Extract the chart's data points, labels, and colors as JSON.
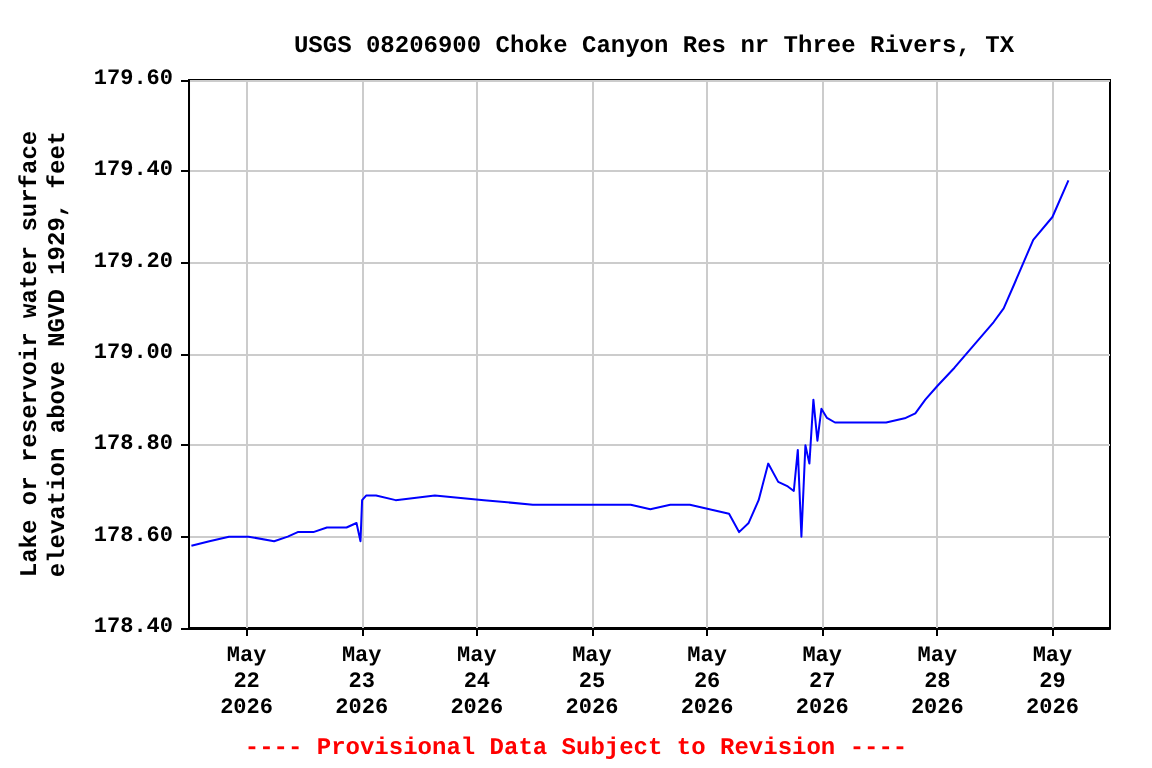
{
  "chart_data": {
    "type": "line",
    "title": "USGS 08206900 Choke Canyon Res nr Three Rivers, TX",
    "ylabel": "Lake or reservoir water surface\nelevation above NGVD 1929, feet",
    "annotations": [
      "---- Provisional Data Subject to Revision ----"
    ],
    "x": [
      "2026-05-21T12:30",
      "2026-05-21T16:15",
      "2026-05-21T20:20",
      "2026-05-22T00:25",
      "2026-05-22T05:45",
      "2026-05-22T08:35",
      "2026-05-22T10:40",
      "2026-05-22T13:55",
      "2026-05-22T16:45",
      "2026-05-22T20:50",
      "2026-05-22T22:55",
      "2026-05-22T23:45",
      "2026-05-23T00:05",
      "2026-05-23T00:55",
      "2026-05-23T03:00",
      "2026-05-23T07:05",
      "2026-05-23T15:15",
      "2026-05-24T01:30",
      "2026-05-24T11:40",
      "2026-05-24T23:55",
      "2026-05-25T08:05",
      "2026-05-25T12:10",
      "2026-05-25T16:20",
      "2026-05-25T20:25",
      "2026-05-26T00:30",
      "2026-05-26T04:35",
      "2026-05-26T06:40",
      "2026-05-26T08:40",
      "2026-05-26T10:45",
      "2026-05-26T12:45",
      "2026-05-26T14:50",
      "2026-05-26T16:50",
      "2026-05-26T18:05",
      "2026-05-26T18:55",
      "2026-05-26T19:40",
      "2026-05-26T20:30",
      "2026-05-26T21:20",
      "2026-05-26T22:10",
      "2026-05-26T23:00",
      "2026-05-26T23:50",
      "2026-05-27T01:00",
      "2026-05-27T02:40",
      "2026-05-27T13:20",
      "2026-05-27T17:25",
      "2026-05-27T19:25",
      "2026-05-27T21:30",
      "2026-05-28T00:00",
      "2026-05-28T03:35",
      "2026-05-28T07:40",
      "2026-05-28T11:45",
      "2026-05-28T13:50",
      "2026-05-28T15:55",
      "2026-05-28T20:00",
      "2026-05-29T00:00",
      "2026-05-29T03:20"
    ],
    "series": [
      {
        "color": "#0000ff",
        "values": [
          178.58,
          178.59,
          178.6,
          178.6,
          178.59,
          178.6,
          178.61,
          178.61,
          178.62,
          178.62,
          178.63,
          178.59,
          178.68,
          178.69,
          178.69,
          178.68,
          178.69,
          178.68,
          178.67,
          178.67,
          178.67,
          178.66,
          178.67,
          178.67,
          178.66,
          178.65,
          178.61,
          178.63,
          178.68,
          178.76,
          178.72,
          178.71,
          178.7,
          178.79,
          178.6,
          178.8,
          178.76,
          178.9,
          178.81,
          178.88,
          178.86,
          178.85,
          178.85,
          178.86,
          178.87,
          178.9,
          178.93,
          178.97,
          179.02,
          179.07,
          179.1,
          179.15,
          179.25,
          179.3,
          179.38
        ]
      }
    ],
    "xlim": [
      "2026-05-21T12:00",
      "2026-05-29T12:00"
    ],
    "xticks": [
      {
        "value": "2026-05-22",
        "label": "May\n22\n2026"
      },
      {
        "value": "2026-05-23",
        "label": "May\n23\n2026"
      },
      {
        "value": "2026-05-24",
        "label": "May\n24\n2026"
      },
      {
        "value": "2026-05-25",
        "label": "May\n25\n2026"
      },
      {
        "value": "2026-05-26",
        "label": "May\n26\n2026"
      },
      {
        "value": "2026-05-27",
        "label": "May\n27\n2026"
      },
      {
        "value": "2026-05-28",
        "label": "May\n28\n2026"
      },
      {
        "value": "2026-05-29",
        "label": "May\n29\n2026"
      }
    ],
    "ylim": [
      178.4,
      179.6
    ],
    "yticks": [
      {
        "value": 178.4,
        "label": "178.40"
      },
      {
        "value": 178.6,
        "label": "178.60"
      },
      {
        "value": 178.8,
        "label": "178.80"
      },
      {
        "value": 179.0,
        "label": "179.00"
      },
      {
        "value": 179.2,
        "label": "179.20"
      },
      {
        "value": 179.4,
        "label": "179.40"
      },
      {
        "value": 179.6,
        "label": "179.60"
      }
    ],
    "grid": true,
    "marker": "none",
    "line_style": "solid"
  }
}
